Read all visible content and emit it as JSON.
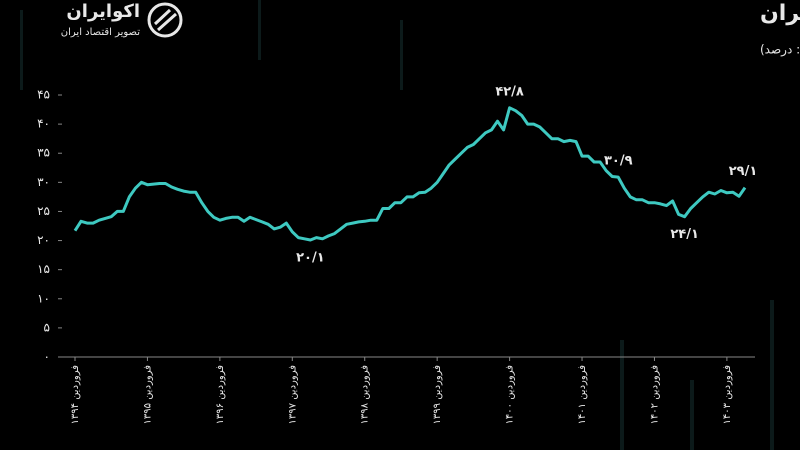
{
  "logo": {
    "name": "اکوایران",
    "tagline": "تصویر اقتصاد ایران"
  },
  "chart_data": {
    "type": "line",
    "title": "نرخ رشد نقدینگی در اقتصاد ایران",
    "subtitle": "(واحد: درصد)",
    "color": "#3ec9c1",
    "categories": [
      "فروردین ۱۳۹۴",
      null,
      null,
      null,
      null,
      null,
      null,
      null,
      null,
      null,
      null,
      null,
      "فروردین ۱۳۹۵",
      null,
      null,
      null,
      null,
      null,
      null,
      null,
      null,
      null,
      null,
      null,
      "فروردین ۱۳۹۶",
      null,
      null,
      null,
      null,
      null,
      null,
      null,
      null,
      null,
      null,
      null,
      "فروردین ۱۳۹۷",
      null,
      null,
      null,
      null,
      null,
      null,
      null,
      null,
      null,
      null,
      null,
      "فروردین ۱۳۹۸",
      null,
      null,
      null,
      null,
      null,
      null,
      null,
      null,
      null,
      null,
      null,
      "فروردین ۱۳۹۹",
      null,
      null,
      null,
      null,
      null,
      null,
      null,
      null,
      null,
      null,
      null,
      "فروردین ۱۴۰۰",
      null,
      null,
      null,
      null,
      null,
      null,
      null,
      null,
      null,
      null,
      null,
      "فروردین ۱۴۰۱",
      null,
      null,
      null,
      null,
      null,
      null,
      null,
      null,
      null,
      null,
      null,
      "فروردین ۱۴۰۲",
      null,
      null,
      null,
      null,
      null,
      null,
      null,
      null,
      null,
      null,
      null,
      "فروردین ۱۴۰۳",
      null,
      null,
      null
    ],
    "values": [
      21.7,
      23.3,
      23.0,
      23.0,
      23.5,
      23.8,
      24.1,
      25.0,
      25.0,
      27.5,
      29.0,
      30.0,
      29.6,
      29.7,
      29.8,
      29.8,
      29.2,
      28.8,
      28.5,
      28.3,
      28.3,
      26.5,
      25.0,
      24.0,
      23.5,
      23.8,
      24.0,
      24.0,
      23.3,
      24.0,
      23.6,
      23.2,
      22.8,
      22.0,
      22.3,
      23.0,
      21.5,
      20.5,
      20.3,
      20.1,
      20.5,
      20.3,
      20.8,
      21.2,
      22.0,
      22.8,
      23.0,
      23.2,
      23.3,
      23.5,
      23.5,
      25.5,
      25.5,
      26.5,
      26.5,
      27.5,
      27.5,
      28.2,
      28.3,
      29.0,
      30.0,
      31.5,
      33.0,
      34.0,
      35.0,
      36.0,
      36.5,
      37.5,
      38.5,
      39.0,
      40.5,
      39.0,
      42.8,
      42.3,
      41.5,
      40.0,
      40.0,
      39.5,
      38.5,
      37.5,
      37.5,
      37.0,
      37.2,
      37.0,
      34.5,
      34.5,
      33.5,
      33.5,
      32.0,
      31.0,
      30.9,
      29.0,
      27.5,
      27.0,
      27.0,
      26.5,
      26.5,
      26.3,
      26.0,
      26.8,
      24.5,
      24.1,
      25.5,
      26.5,
      27.5,
      28.3,
      28.0,
      28.6,
      28.2,
      28.3,
      27.6,
      29.1
    ],
    "value_labels": [
      null,
      null,
      null,
      null,
      null,
      null,
      null,
      null,
      null,
      null,
      null,
      null,
      null,
      null,
      null,
      null,
      null,
      null,
      null,
      null,
      null,
      null,
      null,
      null,
      null,
      null,
      null,
      null,
      null,
      null,
      null,
      null,
      null,
      null,
      null,
      null,
      null,
      null,
      null,
      "۲۰/۱",
      null,
      null,
      null,
      null,
      null,
      null,
      null,
      null,
      null,
      null,
      null,
      null,
      null,
      null,
      null,
      null,
      null,
      null,
      null,
      null,
      null,
      null,
      null,
      null,
      null,
      null,
      null,
      null,
      null,
      null,
      null,
      null,
      "۴۲/۸",
      null,
      null,
      null,
      null,
      null,
      null,
      null,
      null,
      null,
      null,
      null,
      null,
      null,
      null,
      null,
      null,
      null,
      "۳۰/۹",
      null,
      null,
      null,
      null,
      null,
      null,
      null,
      null,
      null,
      null,
      "۲۴/۱",
      null,
      null,
      null,
      null,
      null,
      null,
      null,
      null,
      null,
      "۲۹/۱"
    ],
    "ylim": [
      0,
      45
    ],
    "yticks": [
      {
        "value": 0,
        "label": "۰"
      },
      {
        "value": 5,
        "label": "۵"
      },
      {
        "value": 10,
        "label": "۱۰"
      },
      {
        "value": 15,
        "label": "۱۵"
      },
      {
        "value": 20,
        "label": "۲۰"
      },
      {
        "value": 25,
        "label": "۲۵"
      },
      {
        "value": 30,
        "label": "۳۰"
      },
      {
        "value": 35,
        "label": "۳۵"
      },
      {
        "value": 40,
        "label": "۴۰"
      },
      {
        "value": 45,
        "label": "۴۵"
      }
    ],
    "grid": false
  }
}
